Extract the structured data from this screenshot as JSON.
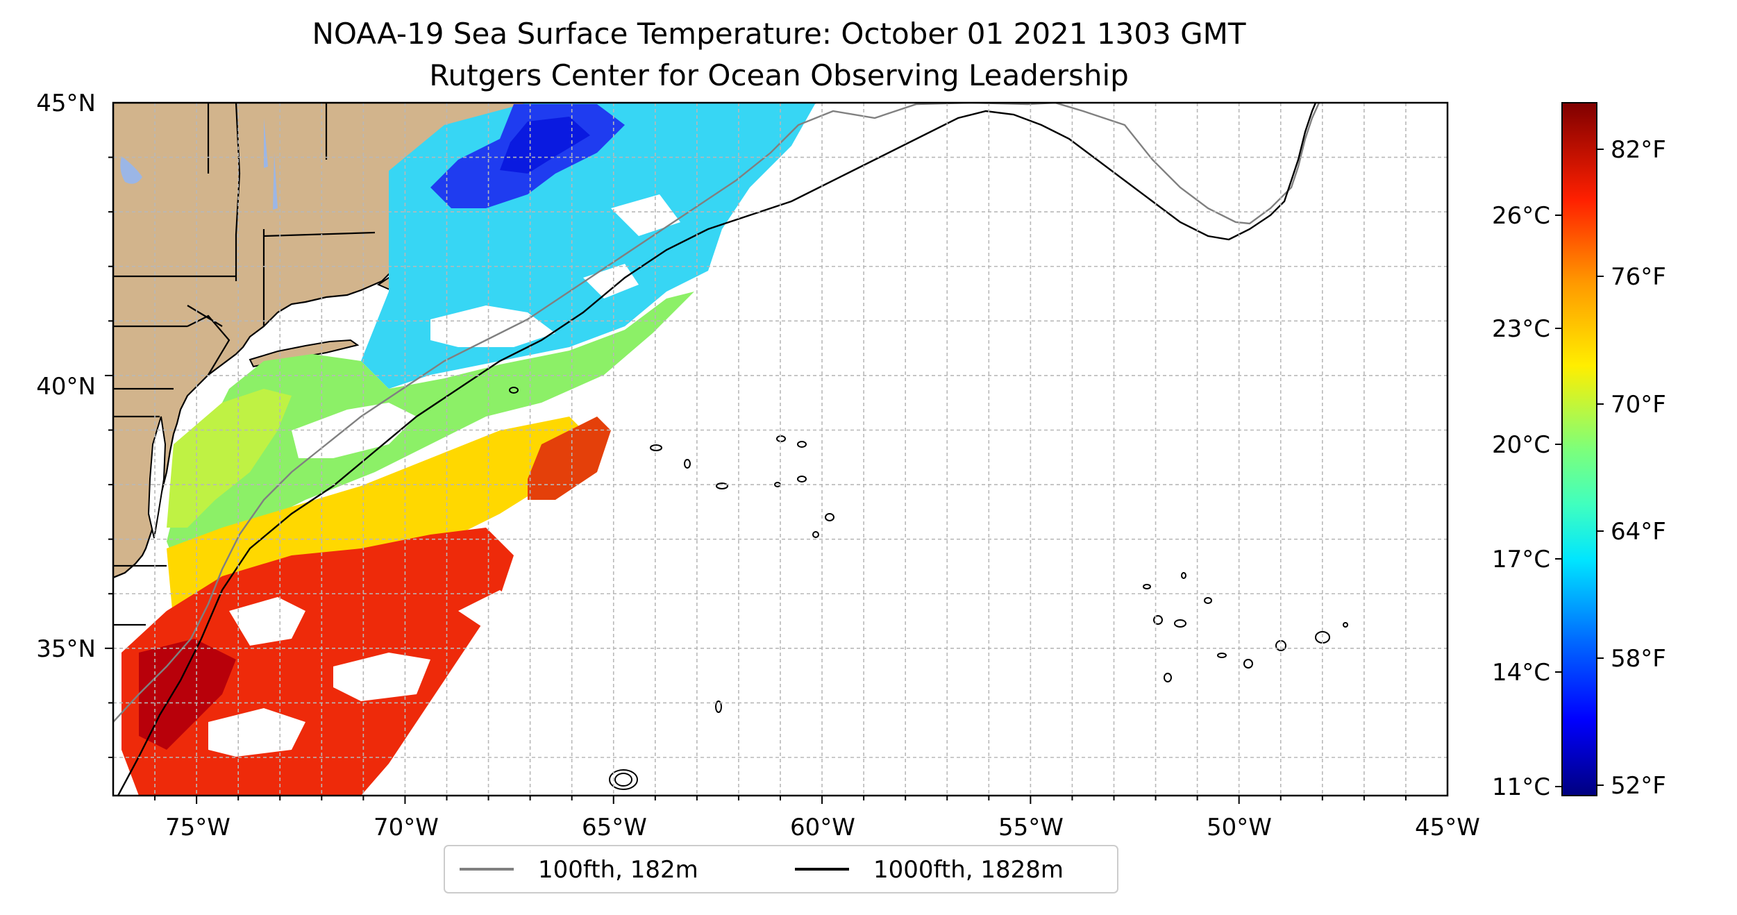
{
  "figure": {
    "title_line1": "NOAA-19 Sea Surface Temperature: October 01 2021 1303 GMT",
    "title_line2": "Rutgers Center for Ocean Observing Leadership"
  },
  "map": {
    "projection": "PlateCarree",
    "lon_range": [
      -77,
      -45
    ],
    "lat_range": [
      32.3,
      45
    ],
    "gridlines": true,
    "land_color": "#d2b48c",
    "x_tick_labels": [
      "75°W",
      "70°W",
      "65°W",
      "60°W",
      "55°W",
      "50°W",
      "45°W"
    ],
    "y_tick_labels": [
      "35°N",
      "40°N",
      "45°N"
    ]
  },
  "legend": {
    "placement": "bottom-center",
    "items": [
      {
        "label": "100fth, 182m",
        "color": "#808080"
      },
      {
        "label": "1000fth, 1828m",
        "color": "#000000"
      }
    ]
  },
  "colorbar": {
    "colormap": "jet",
    "range_f": [
      51.5,
      84
    ],
    "left_labels": [
      "26°C",
      "23°C",
      "20°C",
      "17°C",
      "14°C",
      "11°C"
    ],
    "right_labels": [
      "82°F",
      "76°F",
      "70°F",
      "64°F",
      "58°F",
      "52°F"
    ]
  }
}
